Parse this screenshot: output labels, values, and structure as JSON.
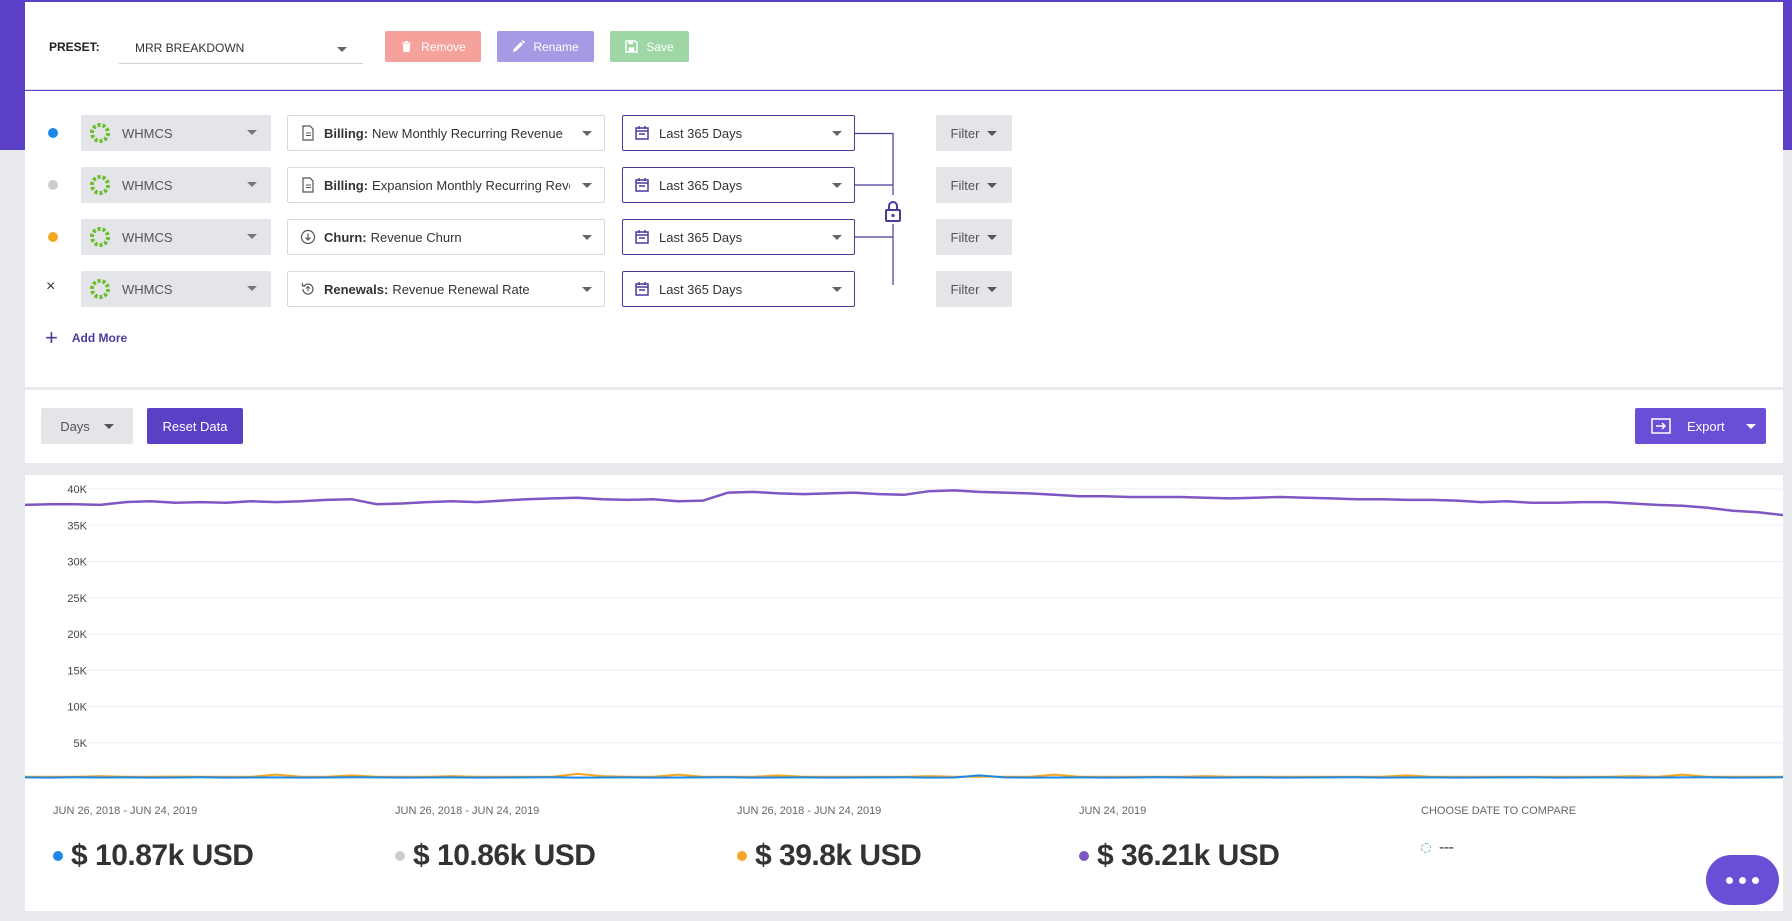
{
  "preset": {
    "label": "PRESET:",
    "selected": "MRR BREAKDOWN",
    "buttons": {
      "remove": "Remove",
      "rename": "Rename",
      "save": "Save"
    }
  },
  "rows": [
    {
      "indicator_color": "#1e88e5",
      "source": "WHMCS",
      "metric_category": "Billing:",
      "metric_name": "New Monthly Recurring Revenue",
      "date_range": "Last 365 Days",
      "filter": "Filter"
    },
    {
      "indicator_color": "#cccccc",
      "source": "WHMCS",
      "metric_category": "Billing:",
      "metric_name": "Expansion Monthly Recurring Revenue",
      "date_range": "Last 365 Days",
      "filter": "Filter"
    },
    {
      "indicator_color": "#f5a623",
      "source": "WHMCS",
      "metric_category": "Churn:",
      "metric_name": "Revenue Churn",
      "date_range": "Last 365 Days",
      "filter": "Filter"
    },
    {
      "indicator_symbol": "×",
      "source": "WHMCS",
      "metric_category": "Renewals:",
      "metric_name": "Revenue Renewal Rate",
      "date_range": "Last 365 Days",
      "filter": "Filter"
    }
  ],
  "add_more": "Add More",
  "toolbar": {
    "interval": "Days",
    "reset": "Reset Data",
    "export": "Export"
  },
  "chart_data": {
    "type": "line",
    "ylim": [
      0,
      40000
    ],
    "yticks": [
      "5K",
      "10K",
      "15K",
      "20K",
      "25K",
      "30K",
      "35K",
      "40K"
    ],
    "ytick_values": [
      5000,
      10000,
      15000,
      20000,
      25000,
      30000,
      35000,
      40000
    ],
    "series": [
      {
        "color": "#7e57c2",
        "values": [
          37800,
          37900,
          37900,
          37800,
          38200,
          38300,
          38100,
          38200,
          38100,
          38300,
          38200,
          38300,
          38500,
          38600,
          37900,
          38000,
          38200,
          38300,
          38200,
          38400,
          38600,
          38700,
          38800,
          38600,
          38500,
          38600,
          38300,
          38400,
          39500,
          39600,
          39400,
          39300,
          39400,
          39500,
          39300,
          39200,
          39700,
          39800,
          39600,
          39500,
          39400,
          39200,
          39000,
          39000,
          38900,
          38900,
          38900,
          38800,
          38700,
          38800,
          38900,
          38800,
          38700,
          38600,
          38600,
          38500,
          38500,
          38400,
          38200,
          38300,
          38100,
          38100,
          38200,
          38200,
          38000,
          37800,
          37700,
          37400,
          37000,
          36800,
          36400
        ]
      },
      {
        "color": "#f5a623",
        "values": [
          300,
          300,
          300,
          400,
          300,
          300,
          350,
          300,
          300,
          300,
          600,
          300,
          300,
          500,
          300,
          300,
          300,
          400,
          300,
          300,
          300,
          300,
          700,
          400,
          300,
          300,
          600,
          300,
          300,
          300,
          500,
          300,
          300,
          300,
          300,
          300,
          400,
          300,
          300,
          300,
          300,
          600,
          300,
          300,
          300,
          300,
          300,
          400,
          300,
          300,
          300,
          300,
          300,
          300,
          300,
          500,
          300,
          300,
          300,
          300,
          300,
          300,
          300,
          300,
          400,
          300,
          600,
          300,
          300,
          300,
          300
        ]
      },
      {
        "color": "#1e88e5",
        "values": [
          220,
          200,
          230,
          210,
          220,
          200,
          210,
          230,
          200,
          210,
          220,
          200,
          210,
          230,
          220,
          200,
          210,
          220,
          200,
          210,
          220,
          230,
          200,
          210,
          220,
          200,
          210,
          220,
          230,
          200,
          210,
          220,
          200,
          210,
          220,
          230,
          200,
          210,
          500,
          220,
          200,
          210,
          220,
          200,
          210,
          230,
          220,
          200,
          210,
          220,
          200,
          210,
          220,
          230,
          200,
          210,
          220,
          200,
          210,
          220,
          230,
          200,
          210,
          220,
          200,
          210,
          220,
          230,
          200,
          210,
          220
        ]
      }
    ]
  },
  "summary": [
    {
      "range": "JUN 26, 2018 - JUN 24, 2019",
      "value": "$ 10.87k USD",
      "color": "#1e88e5"
    },
    {
      "range": "JUN 26, 2018 - JUN 24, 2019",
      "value": "$ 10.86k USD",
      "color": "#cccccc"
    },
    {
      "range": "JUN 26, 2018 - JUN 24, 2019",
      "value": "$ 39.8k USD",
      "color": "#f5a623"
    },
    {
      "range": "JUN 24, 2019",
      "value": "$ 36.21k USD",
      "color": "#7e57c2"
    },
    {
      "range": "CHOOSE DATE TO COMPARE",
      "value": "---"
    }
  ]
}
